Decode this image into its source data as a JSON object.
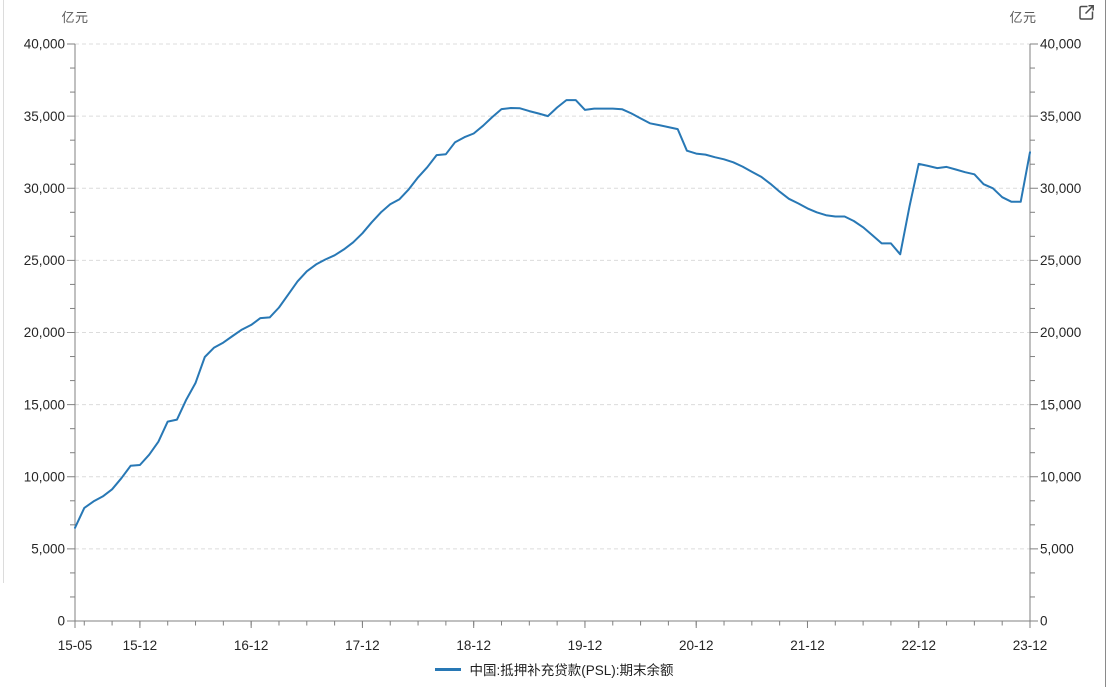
{
  "chart": {
    "unit_left": "亿元",
    "unit_right": "亿元",
    "legend_label": "中国:抵押补充贷款(PSL):期末余额",
    "colors": {
      "line": "#2878b5",
      "grid": "#dcdcdc",
      "axis": "#808080",
      "tick_label": "#262626",
      "unit_label": "#595959",
      "icon": "#4d4d4d"
    }
  },
  "chart_data": {
    "type": "line",
    "title": "",
    "xlabel": "",
    "ylabel_left": "亿元",
    "ylabel_right": "亿元",
    "frequency": "monthly",
    "x_start": "2015-05",
    "x_end": "2023-12",
    "ylim": [
      0,
      40000
    ],
    "y_tick_step": 5000,
    "y_minor_divisions": 3,
    "grid": "horizontal-dashed",
    "legend_position": "bottom-center",
    "x_major_ticks": [
      {
        "label": "15-05",
        "m": 0
      },
      {
        "label": "15-12",
        "m": 7
      },
      {
        "label": "16-12",
        "m": 19
      },
      {
        "label": "17-12",
        "m": 31
      },
      {
        "label": "18-12",
        "m": 43
      },
      {
        "label": "19-12",
        "m": 55
      },
      {
        "label": "20-12",
        "m": 67
      },
      {
        "label": "21-12",
        "m": 79
      },
      {
        "label": "22-12",
        "m": 91
      },
      {
        "label": "23-12",
        "m": 103
      }
    ],
    "series": [
      {
        "name": "中国:抵押补充贷款(PSL):期末余额",
        "values": [
          6459,
          7840,
          8290,
          8640,
          9130,
          9900,
          10760,
          10812,
          11530,
          12430,
          13820,
          13960,
          15350,
          16500,
          18300,
          18950,
          19300,
          19760,
          20200,
          20526,
          21000,
          21045,
          21730,
          22640,
          23540,
          24240,
          24720,
          25060,
          25350,
          25760,
          26250,
          26876,
          27640,
          28330,
          28890,
          29240,
          29930,
          30760,
          31460,
          32300,
          32360,
          33190,
          33540,
          33795,
          34330,
          34930,
          35490,
          35560,
          35540,
          35350,
          35180,
          35000,
          35600,
          36110,
          36110,
          35430,
          35520,
          35520,
          35520,
          35480,
          35190,
          34840,
          34500,
          34375,
          34240,
          34100,
          32600,
          32400,
          32330,
          32150,
          32010,
          31800,
          31500,
          31150,
          30800,
          30310,
          29760,
          29270,
          28950,
          28600,
          28330,
          28130,
          28040,
          28040,
          27730,
          27290,
          26740,
          26180,
          26180,
          25420,
          28740,
          31690,
          31550,
          31400,
          31480,
          31300,
          31110,
          30970,
          30280,
          30000,
          29380,
          29060,
          29060,
          32500
        ]
      }
    ]
  }
}
